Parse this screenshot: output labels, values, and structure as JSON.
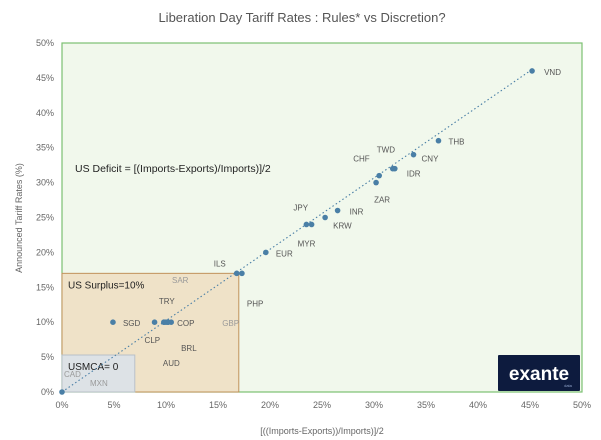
{
  "chart_data": {
    "type": "scatter",
    "title": "Liberation Day Tariff Rates : Rules* vs Discretion?",
    "xlabel": "[((Imports-Exports))/Imports)]/2",
    "ylabel": "Announced Tariff Rates (%)",
    "xlim": [
      0,
      50
    ],
    "ylim": [
      0,
      50
    ],
    "x_ticks": [
      "0%",
      "5%",
      "10%",
      "15%",
      "20%",
      "25%",
      "30%",
      "35%",
      "40%",
      "45%",
      "50%"
    ],
    "y_ticks": [
      "0%",
      "5%",
      "10%",
      "15%",
      "20%",
      "25%",
      "30%",
      "35%",
      "40%",
      "45%",
      "50%"
    ],
    "grid": false,
    "trendline": {
      "style": "dotted",
      "from": [
        0,
        0
      ],
      "to": [
        45,
        46
      ]
    },
    "points": [
      {
        "label": "VND",
        "x": 45.2,
        "y": 46
      },
      {
        "label": "THB",
        "x": 36.2,
        "y": 36
      },
      {
        "label": "CNY",
        "x": 33.8,
        "y": 34
      },
      {
        "label": "TWD",
        "x": 32.0,
        "y": 32
      },
      {
        "label": "IDR",
        "x": 31.8,
        "y": 32
      },
      {
        "label": "CHF",
        "x": 30.5,
        "y": 31
      },
      {
        "label": "ZAR",
        "x": 30.2,
        "y": 30
      },
      {
        "label": "INR",
        "x": 26.5,
        "y": 26
      },
      {
        "label": "KRW",
        "x": 25.3,
        "y": 25
      },
      {
        "label": "JPY",
        "x": 23.5,
        "y": 24
      },
      {
        "label": "MYR",
        "x": 24.0,
        "y": 24
      },
      {
        "label": "EUR",
        "x": 19.6,
        "y": 20
      },
      {
        "label": "ILS",
        "x": 16.8,
        "y": 17
      },
      {
        "label": "PHP",
        "x": 17.3,
        "y": 17
      },
      {
        "label": "SGD",
        "x": 4.9,
        "y": 10
      },
      {
        "label": "SAR",
        "x": 10.0,
        "y": 10
      },
      {
        "label": "TRY",
        "x": 9.8,
        "y": 10
      },
      {
        "label": "COP",
        "x": 10.2,
        "y": 10
      },
      {
        "label": "GBP",
        "x": 10.5,
        "y": 10
      },
      {
        "label": "CLP",
        "x": 8.9,
        "y": 10
      },
      {
        "label": "BRL",
        "x": 10.2,
        "y": 10
      },
      {
        "label": "AUD",
        "x": 9.8,
        "y": 10
      },
      {
        "label": "CAD",
        "x": 0,
        "y": 0
      },
      {
        "label": "MXN",
        "x": 0,
        "y": 0
      }
    ],
    "regions": [
      {
        "name": "green",
        "label": "",
        "x": [
          0,
          50
        ],
        "y": [
          0,
          50
        ],
        "fill": "#f1f8ec",
        "stroke": "#7cc072"
      },
      {
        "name": "surplus",
        "label": "US Surplus=10%",
        "x": [
          0,
          17
        ],
        "y": [
          0,
          17
        ],
        "fill": "#efe2c8",
        "stroke": "#c0925a"
      },
      {
        "name": "usmca",
        "label": "USMCA= 0",
        "x": [
          0,
          7
        ],
        "y": [
          0,
          5.3
        ],
        "fill": "#dde2e6",
        "stroke": "#b9c0c8"
      }
    ],
    "annotation": "US Deficit = [(Imports-Exports)/Imports)]/2",
    "point_color": "#4a7fa6",
    "trend_color": "#4a7fa6",
    "logo": {
      "text": "exante",
      "sub": "data",
      "bg": "#0d1b3e"
    }
  }
}
